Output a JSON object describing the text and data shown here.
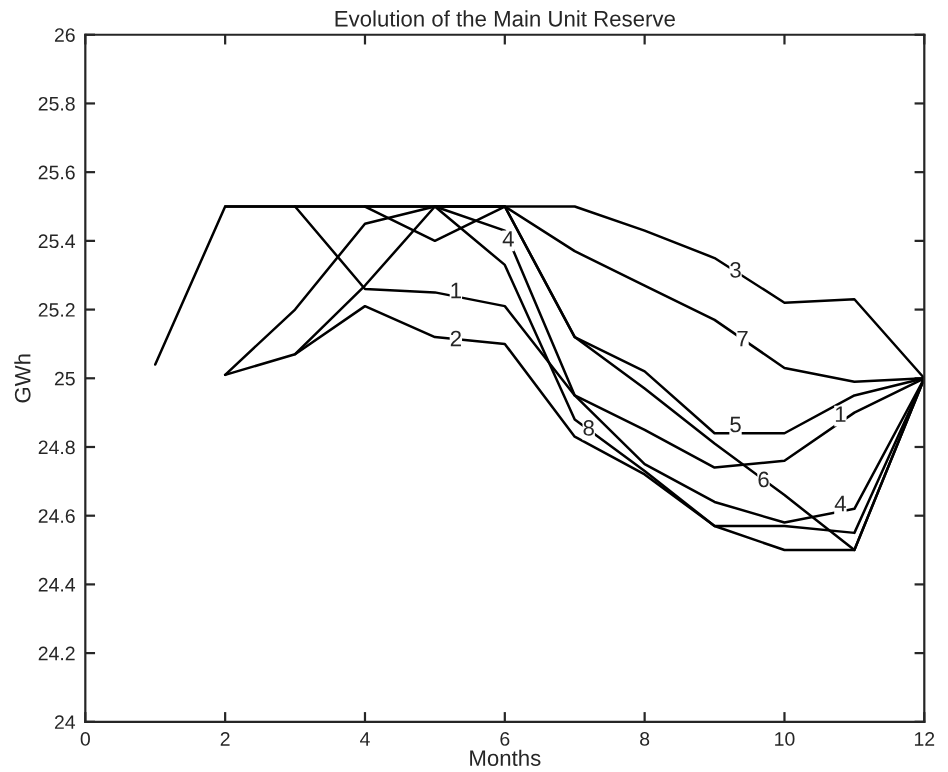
{
  "chart_data": {
    "type": "line",
    "title": "Evolution of the Main Unit Reserve",
    "xlabel": "Months",
    "ylabel": "GWh",
    "x": [
      1,
      2,
      3,
      4,
      5,
      6,
      7,
      8,
      9,
      10,
      11,
      12
    ],
    "series": [
      {
        "color": "#000000",
        "values": [
          null,
          null,
          25.5,
          25.26,
          25.25,
          25.21,
          24.95,
          24.85,
          24.74,
          24.76,
          24.9,
          25.0
        ]
      },
      {
        "color": "#000000",
        "values": [
          null,
          25.01,
          25.07,
          25.21,
          25.12,
          25.1,
          24.83,
          24.72,
          24.57,
          24.57,
          24.55,
          25.0
        ]
      },
      {
        "color": "#000000",
        "values": [
          25.04,
          25.5,
          25.5,
          25.5,
          25.5,
          25.5,
          25.5,
          25.43,
          25.35,
          25.22,
          25.23,
          25.0
        ]
      },
      {
        "color": "#000000",
        "values": [
          null,
          25.01,
          25.2,
          25.45,
          25.5,
          25.43,
          24.95,
          24.75,
          24.64,
          24.58,
          24.62,
          25.0
        ]
      },
      {
        "color": "#000000",
        "values": [
          null,
          null,
          25.07,
          25.27,
          25.5,
          25.5,
          25.12,
          25.02,
          24.84,
          24.84,
          24.95,
          25.0
        ]
      },
      {
        "color": "#000000",
        "values": [
          null,
          null,
          null,
          25.5,
          25.4,
          25.5,
          25.12,
          24.97,
          24.81,
          24.66,
          24.5,
          25.0
        ]
      },
      {
        "color": "#000000",
        "values": [
          null,
          null,
          null,
          null,
          25.5,
          25.5,
          25.37,
          25.27,
          25.17,
          25.03,
          24.99,
          25.0
        ]
      },
      {
        "color": "#000000",
        "values": [
          null,
          25.5,
          25.5,
          25.5,
          25.5,
          25.33,
          24.88,
          24.73,
          24.57,
          24.5,
          24.5,
          25.0
        ]
      }
    ],
    "annotations": [
      {
        "text": "1",
        "x": 5.3,
        "y": 25.25
      },
      {
        "text": "2",
        "x": 5.3,
        "y": 25.11
      },
      {
        "text": "3",
        "x": 9.3,
        "y": 25.31
      },
      {
        "text": "4",
        "x": 6.05,
        "y": 25.4
      },
      {
        "text": "7",
        "x": 9.4,
        "y": 25.11
      },
      {
        "text": "5",
        "x": 9.3,
        "y": 24.86
      },
      {
        "text": "1",
        "x": 10.8,
        "y": 24.89
      },
      {
        "text": "8",
        "x": 7.2,
        "y": 24.85
      },
      {
        "text": "6",
        "x": 9.7,
        "y": 24.7
      },
      {
        "text": "4",
        "x": 10.8,
        "y": 24.63
      }
    ],
    "xlim": [
      0,
      12
    ],
    "xticks": [
      0,
      2,
      4,
      6,
      8,
      10,
      12
    ],
    "ylim": [
      24,
      26
    ],
    "yticks": [
      24,
      24.2,
      24.4,
      24.6,
      24.8,
      25,
      25.2,
      25.4,
      25.6,
      25.8,
      26
    ],
    "grid": false,
    "marker": "none",
    "line_style": "solid"
  }
}
